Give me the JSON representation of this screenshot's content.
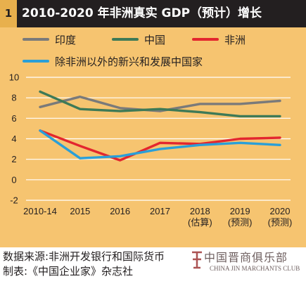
{
  "header": {
    "badge": "1",
    "title": "2010-2020 年非洲真实 GDP（预计）增长"
  },
  "chart_data": {
    "type": "line",
    "categories": [
      "2010-14",
      "2015",
      "2016",
      "2017",
      "2018",
      "2019",
      "2020"
    ],
    "category_notes": [
      "",
      "",
      "",
      "",
      "(估算)",
      "(预测)",
      "(预测)"
    ],
    "y_ticks": [
      10,
      8,
      6,
      4,
      2,
      0,
      -2
    ],
    "ylim": [
      -2,
      10
    ],
    "grid": true,
    "legend_position": "top",
    "series": [
      {
        "name": "印度",
        "color": "#7a7a7a",
        "values": [
          7.1,
          8.1,
          7.0,
          6.7,
          7.4,
          7.4,
          7.7
        ]
      },
      {
        "name": "中国",
        "color": "#3e7a57",
        "values": [
          8.6,
          6.9,
          6.7,
          6.9,
          6.6,
          6.2,
          6.2
        ]
      },
      {
        "name": "非洲",
        "color": "#e3262e",
        "values": [
          4.8,
          3.3,
          1.9,
          3.6,
          3.5,
          4.0,
          4.1
        ]
      },
      {
        "name": "除非洲以外的新兴和发展中国家",
        "color": "#2a9fd8",
        "values": [
          4.8,
          2.1,
          2.3,
          3.0,
          3.4,
          3.6,
          3.4
        ]
      }
    ]
  },
  "footer": {
    "source_line1": "数据来源:非洲开发银行和国际货币",
    "source_line2": "制表:《中国企业家》杂志社"
  },
  "watermark": {
    "cn": "中国晋商俱乐部",
    "en": "CHINA JIN MARCHANTS CLUB"
  }
}
